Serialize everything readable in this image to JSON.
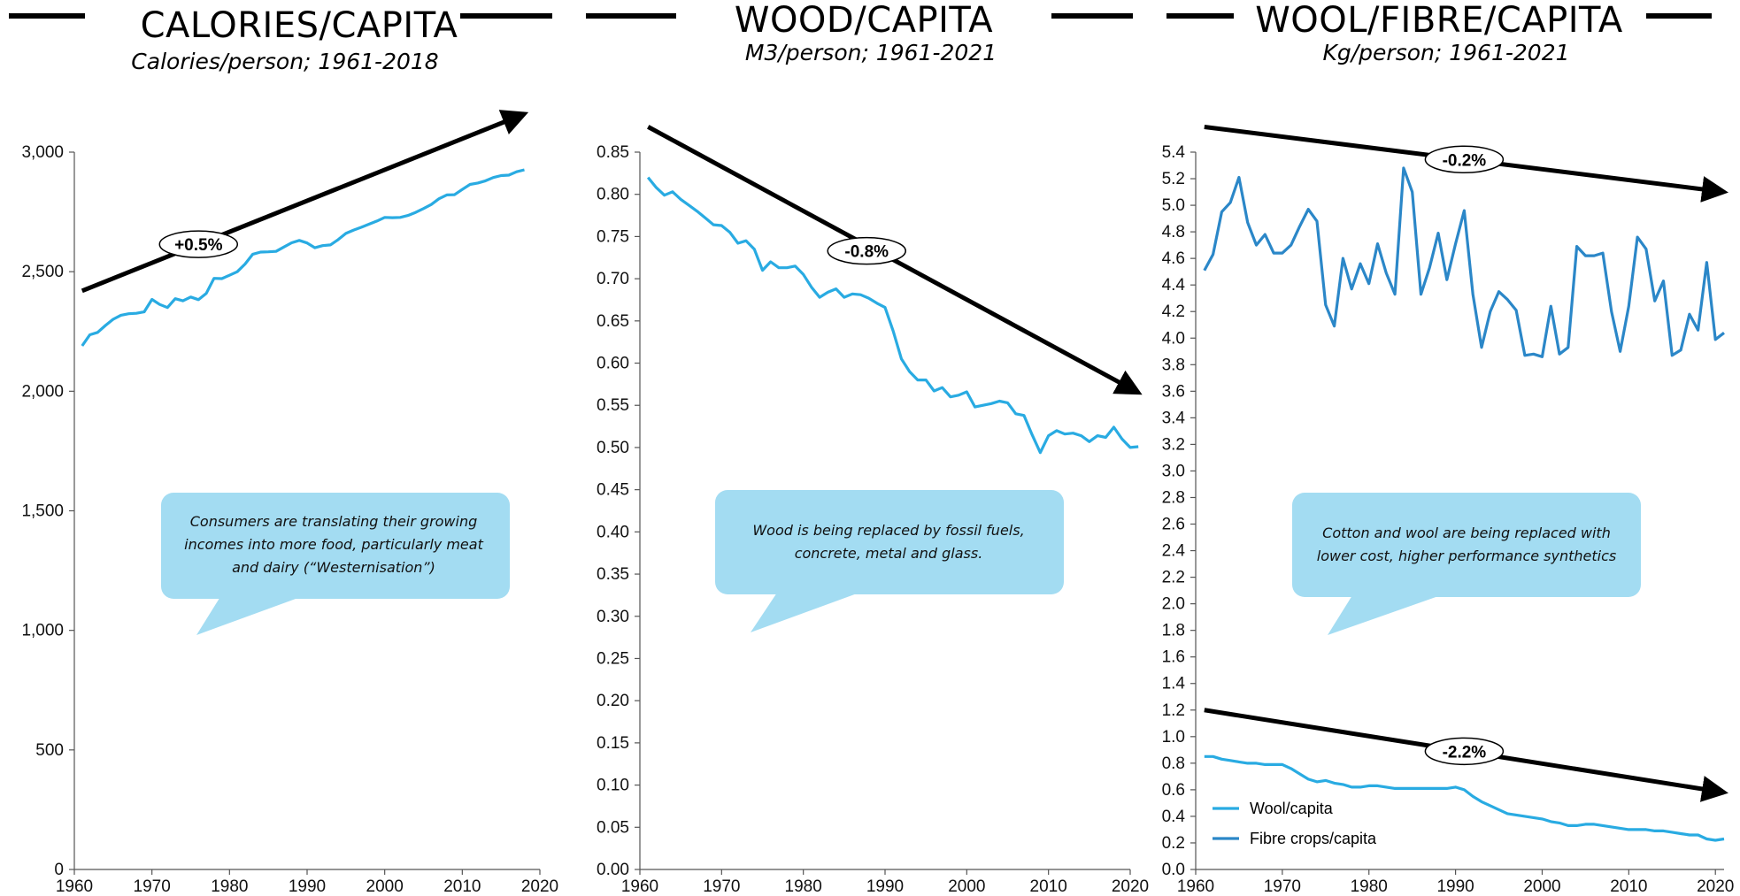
{
  "panels": [
    {
      "title": "CALORIES/CAPITA",
      "subtitle": "Calories/person; 1961-2018",
      "callout": "Consumers are translating their growing incomes into more food, particularly meat and dairy (“Westernisation”)",
      "trend_labels": [
        "+0.5%"
      ]
    },
    {
      "title": "WOOD/CAPITA",
      "subtitle": "M3/person; 1961-2021",
      "callout": "Wood is being replaced by fossil fuels, concrete, metal and glass.",
      "trend_labels": [
        "-0.8%"
      ]
    },
    {
      "title": "WOOL/FIBRE/CAPITA",
      "subtitle": "Kg/person; 1961-2021",
      "callout": "Cotton and wool are being replaced with lower cost, higher performance synthetics",
      "trend_labels": [
        "-0.2%",
        "-2.2%"
      ]
    }
  ],
  "colors": {
    "line_light": "#29abe2",
    "line_dark": "#2b87c8",
    "callout_bg": "#a3dcf2",
    "arrow": "#000000"
  },
  "chart_data": [
    {
      "type": "line",
      "title": "CALORIES/CAPITA",
      "subtitle": "Calories/person; 1961-2018",
      "x_ticks": [
        "1960",
        "1970",
        "1980",
        "1990",
        "2000",
        "2010",
        "2020"
      ],
      "y_ticks": [
        "0",
        "500",
        "1,000",
        "1,500",
        "2,000",
        "2,500",
        "3,000"
      ],
      "xlim": [
        1960,
        2020
      ],
      "ylim": [
        0,
        3000
      ],
      "grid": false,
      "series": [
        {
          "x": [
            1961,
            1962,
            1963,
            1964,
            1965,
            1966,
            1967,
            1968,
            1969,
            1970,
            1971,
            1972,
            1973,
            1974,
            1975,
            1976,
            1977,
            1978,
            1979,
            1980,
            1981,
            1982,
            1983,
            1984,
            1985,
            1986,
            1987,
            1988,
            1989,
            1990,
            1991,
            1992,
            1993,
            1994,
            1995,
            1996,
            1997,
            1998,
            1999,
            2000,
            2001,
            2002,
            2003,
            2004,
            2005,
            2006,
            2007,
            2008,
            2009,
            2010,
            2011,
            2012,
            2013,
            2014,
            2015,
            2016,
            2017,
            2018
          ],
          "y": [
            2190,
            2236,
            2246,
            2275,
            2301,
            2318,
            2324,
            2326,
            2332,
            2384,
            2363,
            2350,
            2387,
            2378,
            2394,
            2383,
            2409,
            2472,
            2471,
            2485,
            2500,
            2532,
            2573,
            2582,
            2583,
            2585,
            2603,
            2621,
            2631,
            2620,
            2600,
            2609,
            2612,
            2634,
            2660,
            2674,
            2686,
            2699,
            2712,
            2727,
            2726,
            2727,
            2735,
            2748,
            2764,
            2781,
            2805,
            2821,
            2822,
            2844,
            2865,
            2871,
            2880,
            2894,
            2902,
            2904,
            2918,
            2926
          ]
        }
      ],
      "trend": {
        "label": "+0.5%",
        "from": [
          1961,
          2420
        ],
        "to": [
          2018,
          3160
        ]
      }
    },
    {
      "type": "line",
      "title": "WOOD/CAPITA",
      "subtitle": "M3/person; 1961-2021",
      "x_ticks": [
        "1960",
        "1970",
        "1980",
        "1990",
        "2000",
        "2010",
        "2020"
      ],
      "y_ticks": [
        "0.00",
        "0.05",
        "0.10",
        "0.15",
        "0.20",
        "0.25",
        "0.30",
        "0.35",
        "0.40",
        "0.45",
        "0.50",
        "0.55",
        "0.60",
        "0.65",
        "0.70",
        "0.75",
        "0.80",
        "0.85"
      ],
      "xlim": [
        1960,
        2020
      ],
      "ylim": [
        0,
        0.85
      ],
      "grid": false,
      "series": [
        {
          "x": [
            1961,
            1962,
            1963,
            1964,
            1965,
            1966,
            1967,
            1968,
            1969,
            1970,
            1971,
            1972,
            1973,
            1974,
            1975,
            1976,
            1977,
            1978,
            1979,
            1980,
            1981,
            1982,
            1983,
            1984,
            1985,
            1986,
            1987,
            1988,
            1989,
            1990,
            1991,
            1992,
            1993,
            1994,
            1995,
            1996,
            1997,
            1998,
            1999,
            2000,
            2001,
            2002,
            2003,
            2004,
            2005,
            2006,
            2007,
            2008,
            2009,
            2010,
            2011,
            2012,
            2013,
            2014,
            2015,
            2016,
            2017,
            2018,
            2019,
            2020,
            2021
          ],
          "y": [
            0.82,
            0.808,
            0.799,
            0.803,
            0.794,
            0.787,
            0.78,
            0.772,
            0.764,
            0.763,
            0.755,
            0.742,
            0.745,
            0.735,
            0.71,
            0.72,
            0.713,
            0.713,
            0.715,
            0.705,
            0.69,
            0.678,
            0.684,
            0.688,
            0.678,
            0.682,
            0.681,
            0.677,
            0.671,
            0.666,
            0.638,
            0.605,
            0.59,
            0.58,
            0.58,
            0.567,
            0.571,
            0.56,
            0.562,
            0.566,
            0.548,
            0.55,
            0.552,
            0.555,
            0.553,
            0.54,
            0.538,
            0.515,
            0.494,
            0.514,
            0.52,
            0.516,
            0.517,
            0.514,
            0.507,
            0.514,
            0.512,
            0.524,
            0.51,
            0.5,
            0.501
          ]
        }
      ],
      "trend": {
        "label": "-0.8%",
        "from": [
          1961,
          0.88
        ],
        "to": [
          2021,
          0.565
        ]
      }
    },
    {
      "type": "line",
      "title": "WOOL/FIBRE/CAPITA",
      "subtitle": "Kg/person; 1961-2021",
      "x_ticks": [
        "1960",
        "1970",
        "1980",
        "1990",
        "2000",
        "2010",
        "2020"
      ],
      "y_ticks": [
        "0.0",
        "0.2",
        "0.4",
        "0.6",
        "0.8",
        "1.0",
        "1.2",
        "1.4",
        "1.6",
        "1.8",
        "2.0",
        "2.2",
        "2.4",
        "2.6",
        "2.8",
        "3.0",
        "3.2",
        "3.4",
        "3.6",
        "3.8",
        "4.0",
        "4.2",
        "4.4",
        "4.6",
        "4.8",
        "5.0",
        "5.2",
        "5.4"
      ],
      "xlim": [
        1960,
        2021
      ],
      "ylim": [
        0,
        5.4
      ],
      "grid": false,
      "legend_position": "bottom-left",
      "series": [
        {
          "name": "Wool/capita",
          "x": [
            1961,
            1962,
            1963,
            1964,
            1965,
            1966,
            1967,
            1968,
            1969,
            1970,
            1971,
            1972,
            1973,
            1974,
            1975,
            1976,
            1977,
            1978,
            1979,
            1980,
            1981,
            1982,
            1983,
            1984,
            1985,
            1986,
            1987,
            1988,
            1989,
            1990,
            1991,
            1992,
            1993,
            1994,
            1995,
            1996,
            1997,
            1998,
            1999,
            2000,
            2001,
            2002,
            2003,
            2004,
            2005,
            2006,
            2007,
            2008,
            2009,
            2010,
            2011,
            2012,
            2013,
            2014,
            2015,
            2016,
            2017,
            2018,
            2019,
            2020,
            2021
          ],
          "y": [
            0.85,
            0.85,
            0.83,
            0.82,
            0.81,
            0.8,
            0.8,
            0.79,
            0.79,
            0.79,
            0.76,
            0.72,
            0.68,
            0.66,
            0.67,
            0.65,
            0.64,
            0.62,
            0.62,
            0.63,
            0.63,
            0.62,
            0.61,
            0.61,
            0.61,
            0.61,
            0.61,
            0.61,
            0.61,
            0.62,
            0.6,
            0.55,
            0.51,
            0.48,
            0.45,
            0.42,
            0.41,
            0.4,
            0.39,
            0.38,
            0.36,
            0.35,
            0.33,
            0.33,
            0.34,
            0.34,
            0.33,
            0.32,
            0.31,
            0.3,
            0.3,
            0.3,
            0.29,
            0.29,
            0.28,
            0.27,
            0.26,
            0.26,
            0.23,
            0.22,
            0.23
          ]
        },
        {
          "name": "Fibre crops/capita",
          "x": [
            1961,
            1962,
            1963,
            1964,
            1965,
            1966,
            1967,
            1968,
            1969,
            1970,
            1971,
            1972,
            1973,
            1974,
            1975,
            1976,
            1977,
            1978,
            1979,
            1980,
            1981,
            1982,
            1983,
            1984,
            1985,
            1986,
            1987,
            1988,
            1989,
            1990,
            1991,
            1992,
            1993,
            1994,
            1995,
            1996,
            1997,
            1998,
            1999,
            2000,
            2001,
            2002,
            2003,
            2004,
            2005,
            2006,
            2007,
            2008,
            2009,
            2010,
            2011,
            2012,
            2013,
            2014,
            2015,
            2016,
            2017,
            2018,
            2019,
            2020,
            2021
          ],
          "y": [
            4.51,
            4.63,
            4.95,
            5.02,
            5.21,
            4.87,
            4.7,
            4.78,
            4.64,
            4.64,
            4.7,
            4.84,
            4.97,
            4.88,
            4.25,
            4.09,
            4.6,
            4.37,
            4.56,
            4.41,
            4.71,
            4.49,
            4.33,
            5.28,
            5.1,
            4.33,
            4.53,
            4.79,
            4.44,
            4.71,
            4.96,
            4.33,
            3.93,
            4.2,
            4.35,
            4.29,
            4.21,
            3.87,
            3.88,
            3.86,
            4.24,
            3.88,
            3.93,
            4.69,
            4.62,
            4.62,
            4.64,
            4.2,
            3.9,
            4.24,
            4.76,
            4.67,
            4.28,
            4.43,
            3.87,
            3.91,
            4.18,
            4.06,
            4.57,
            3.99,
            4.04
          ]
        }
      ],
      "trends": [
        {
          "label": "-0.2%",
          "series": "Fibre crops/capita",
          "from": [
            1961,
            5.59
          ],
          "to": [
            2021,
            5.1
          ]
        },
        {
          "label": "-2.2%",
          "series": "Wool/capita",
          "from": [
            1961,
            1.2
          ],
          "to": [
            2021,
            0.58
          ]
        }
      ]
    }
  ]
}
